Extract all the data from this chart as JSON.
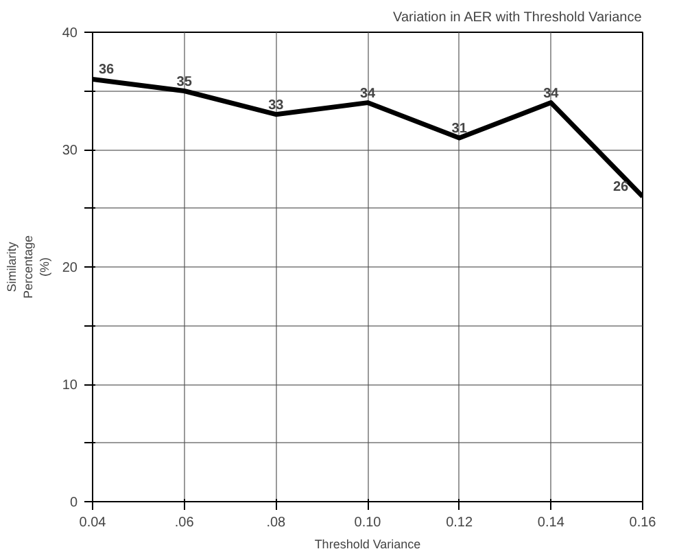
{
  "chart_data": {
    "type": "line",
    "title": "Variation in AER with Threshold Variance",
    "xlabel": "Threshold Variance",
    "ylabel": "Similarity Percentage (%)",
    "x": [
      0.04,
      0.06,
      0.08,
      0.1,
      0.12,
      0.14,
      0.16
    ],
    "series": [
      {
        "color": "#000000",
        "values": [
          36,
          35,
          33,
          34,
          31,
          34,
          26
        ]
      }
    ],
    "data_labels": true,
    "xlim": [
      0.04,
      0.16
    ],
    "xticks": [
      {
        "value": 0.04,
        "label": "0.04"
      },
      {
        "value": 0.06,
        "label": ".06"
      },
      {
        "value": 0.08,
        "label": ".08"
      },
      {
        "value": 0.1,
        "label": "0.10"
      },
      {
        "value": 0.12,
        "label": "0.12"
      },
      {
        "value": 0.14,
        "label": "0.14"
      },
      {
        "value": 0.16,
        "label": "0.16"
      }
    ],
    "ylim": [
      0,
      40
    ],
    "yticks": [
      0,
      {
        "value": 5,
        "label": null
      },
      10,
      {
        "value": 15,
        "label": null
      },
      20,
      {
        "value": 25,
        "label": null
      },
      30,
      {
        "value": 35,
        "label": null
      },
      40
    ],
    "grid": true,
    "marker": "none",
    "line_style": "solid"
  }
}
